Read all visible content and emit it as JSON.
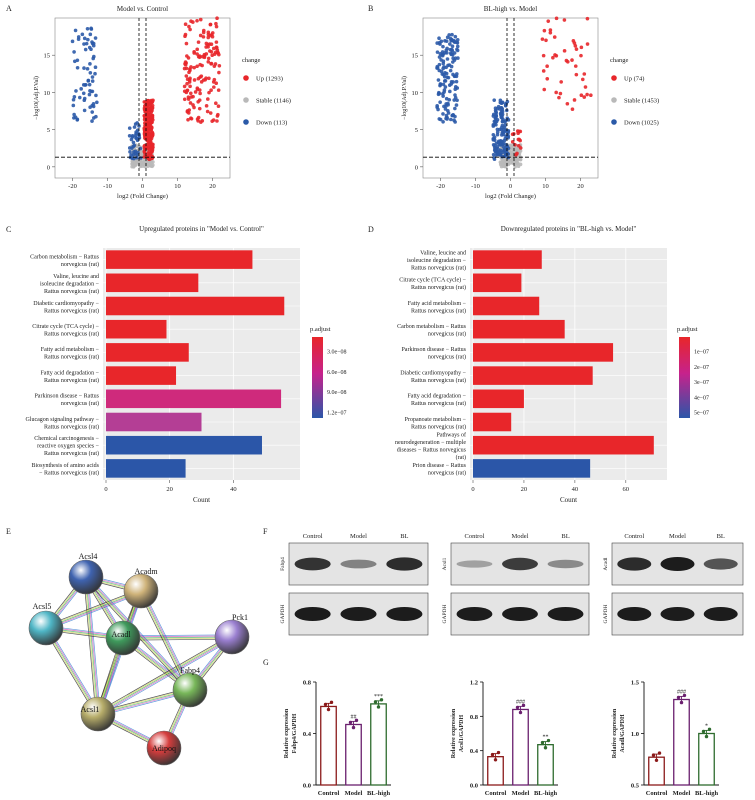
{
  "panel_letters": {
    "a": "A",
    "b": "B",
    "c": "C",
    "d": "D",
    "e": "E",
    "f": "F",
    "g": "G"
  },
  "volcano": [
    {
      "title": "Model vs. Control",
      "xlabel": "log2 (Fold Change)",
      "ylabel": "−log10(Adj.P.Val)",
      "x_ticks": [
        "-20",
        "-10",
        "0",
        "10",
        "20"
      ],
      "y_ticks": [
        "0",
        "5",
        "10",
        "15"
      ],
      "legend_title": "change",
      "legend": [
        {
          "label": "Up (1293)",
          "color": "#e8262a"
        },
        {
          "label": "Stable (1146)",
          "color": "#b9b9b9"
        },
        {
          "label": "Down (113)",
          "color": "#2b5aa8"
        }
      ]
    },
    {
      "title": "BL-high vs. Model",
      "xlabel": "log2 (Fold Change)",
      "ylabel": "−log10(Adj.P.Val)",
      "x_ticks": [
        "-20",
        "-10",
        "0",
        "10",
        "20"
      ],
      "y_ticks": [
        "0",
        "5",
        "10",
        "15"
      ],
      "legend_title": "change",
      "legend": [
        {
          "label": "Up (74)",
          "color": "#e8262a"
        },
        {
          "label": "Stable (1453)",
          "color": "#b9b9b9"
        },
        {
          "label": "Down (1025)",
          "color": "#2b5aa8"
        }
      ]
    }
  ],
  "kegg": [
    {
      "title": "Upregulated proteins in \"Model vs. Control\"",
      "xlabel": "Count",
      "x_ticks": [
        "0",
        "20",
        "40"
      ],
      "legend_title": "p.adjust",
      "legend_ticks": [
        "3.0e−08",
        "6.0e−08",
        "9.0e−08",
        "1.2e−07"
      ],
      "bars": [
        {
          "label": [
            "Carbon metabolism − Rattus",
            "norvegicus (rat)"
          ],
          "count": 46,
          "color": "#e8262a"
        },
        {
          "label": [
            "Valine, leucine and",
            "isoleucine degradation −",
            "Rattus norvegicus (rat)"
          ],
          "count": 29,
          "color": "#e8262a"
        },
        {
          "label": [
            "Diabetic cardiomyopathy −",
            "Rattus norvegicus (rat)"
          ],
          "count": 56,
          "color": "#e8262a"
        },
        {
          "label": [
            "Citrate cycle (TCA cycle) −",
            "Rattus norvegicus (rat)"
          ],
          "count": 19,
          "color": "#e8262a"
        },
        {
          "label": [
            "Fatty acid metabolism −",
            "Rattus norvegicus (rat)"
          ],
          "count": 26,
          "color": "#e8262a"
        },
        {
          "label": [
            "Fatty acid degradation −",
            "Rattus norvegicus (rat)"
          ],
          "count": 22,
          "color": "#e8262a"
        },
        {
          "label": [
            "Parkinson disease − Rattus",
            "norvegicus (rat)"
          ],
          "count": 55,
          "color": "#cf2a7c"
        },
        {
          "label": [
            "Glucagon signaling pathway −",
            "Rattus norvegicus (rat)"
          ],
          "count": 30,
          "color": "#b43e95"
        },
        {
          "label": [
            "Chemical carcinogenesis −",
            "reactive oxygen species −",
            "Rattus norvegicus (rat)"
          ],
          "count": 49,
          "color": "#2b56a8"
        },
        {
          "label": [
            "Biosynthesis of amino acids",
            "− Rattus norvegicus (rat)"
          ],
          "count": 25,
          "color": "#2b56a8"
        }
      ],
      "xmax": 60
    },
    {
      "title": "Downregulated proteins in \"BL-high vs. Model\"",
      "xlabel": "Count",
      "x_ticks": [
        "0",
        "20",
        "40",
        "60"
      ],
      "legend_title": "p.adjust",
      "legend_ticks": [
        "1e−07",
        "2e−07",
        "3e−07",
        "4e−07",
        "5e−07"
      ],
      "bars": [
        {
          "label": [
            "Valine, leucine and",
            "isoleucine degradation −",
            "Rattus norvegicus (rat)"
          ],
          "count": 27,
          "color": "#e8262a"
        },
        {
          "label": [
            "Citrate cycle (TCA cycle) −",
            "Rattus norvegicus (rat)"
          ],
          "count": 19,
          "color": "#e8262a"
        },
        {
          "label": [
            "Fatty acid metabolism −",
            "Rattus norvegicus (rat)"
          ],
          "count": 26,
          "color": "#e8262a"
        },
        {
          "label": [
            "Carbon metabolism − Rattus",
            "norvegicus (rat)"
          ],
          "count": 36,
          "color": "#e8262a"
        },
        {
          "label": [
            "Parkinson disease − Rattus",
            "norvegicus (rat)"
          ],
          "count": 55,
          "color": "#e8262a"
        },
        {
          "label": [
            "Diabetic cardiomyopathy −",
            "Rattus norvegicus (rat)"
          ],
          "count": 47,
          "color": "#e8262a"
        },
        {
          "label": [
            "Fatty acid degradation −",
            "Rattus norvegicus (rat)"
          ],
          "count": 20,
          "color": "#e8262a"
        },
        {
          "label": [
            "Propanoate metabolism −",
            "Rattus norvegicus (rat)"
          ],
          "count": 15,
          "color": "#e8262a"
        },
        {
          "label": [
            "Pathways of",
            "neurodegeneration − multiple",
            "diseases − Rattus norvegicus",
            "(rat)"
          ],
          "count": 71,
          "color": "#e8262a"
        },
        {
          "label": [
            "Prion disease − Rattus",
            "norvegicus (rat)"
          ],
          "count": 46,
          "color": "#2b56a8"
        }
      ],
      "xmax": 75
    }
  ],
  "network": {
    "nodes": [
      {
        "name": "Acsl4",
        "color": "#3f63b0"
      },
      {
        "name": "Acadm",
        "color": "#cfb37a"
      },
      {
        "name": "Acsl5",
        "color": "#4fb6c6"
      },
      {
        "name": "Acadl",
        "color": "#3f9a5c"
      },
      {
        "name": "Pck1",
        "color": "#9a7fd0"
      },
      {
        "name": "Fabp4",
        "color": "#78b75a"
      },
      {
        "name": "Acsl1",
        "color": "#b7ad6a"
      },
      {
        "name": "Adipoq",
        "color": "#d53d3d"
      }
    ]
  },
  "blots": [
    {
      "protein": "Fabp4",
      "loading": "GAPDH",
      "lanes": [
        "Control",
        "Model",
        "BL"
      ]
    },
    {
      "protein": "Acsl1",
      "loading": "GAPDH",
      "lanes": [
        "Control",
        "Model",
        "BL"
      ]
    },
    {
      "protein": "Acadl",
      "loading": "GAPDH",
      "lanes": [
        "Control",
        "Model",
        "BL"
      ]
    }
  ],
  "chart_data": [
    {
      "type": "bar",
      "title": "",
      "ylabel": [
        "Relative expression",
        "Fabp4/GAPDH"
      ],
      "categories": [
        "Control",
        "Model",
        "BL-high"
      ],
      "values": [
        0.61,
        0.47,
        0.63
      ],
      "ylim": [
        0,
        0.8
      ],
      "y_ticks": [
        "0.0",
        "0.4",
        "0.8"
      ],
      "annotations": [
        "",
        "##",
        "***"
      ],
      "colors": [
        "#8b1a1a",
        "#6a1f6e",
        "#2e6b2e"
      ]
    },
    {
      "type": "bar",
      "title": "",
      "ylabel": [
        "Relative expression",
        "Acsl1/GAPDH"
      ],
      "categories": [
        "Control",
        "Model",
        "BL-high"
      ],
      "values": [
        0.33,
        0.88,
        0.47
      ],
      "ylim": [
        0,
        1.2
      ],
      "y_ticks": [
        "0.0",
        "0.4",
        "0.8",
        "1.2"
      ],
      "annotations": [
        "",
        "###",
        "**"
      ],
      "colors": [
        "#8b1a1a",
        "#6a1f6e",
        "#2e6b2e"
      ]
    },
    {
      "type": "bar",
      "title": "",
      "ylabel": [
        "Relative expression",
        "Acadl/GAPDH"
      ],
      "categories": [
        "Control",
        "Model",
        "BL-high"
      ],
      "values": [
        0.77,
        1.33,
        1.0
      ],
      "ylim": [
        0.5,
        1.5
      ],
      "y_ticks": [
        "0.5",
        "1.0",
        "1.5"
      ],
      "annotations": [
        "",
        "###",
        "*"
      ],
      "colors": [
        "#8b1a1a",
        "#6a1f6e",
        "#2e6b2e"
      ]
    }
  ]
}
